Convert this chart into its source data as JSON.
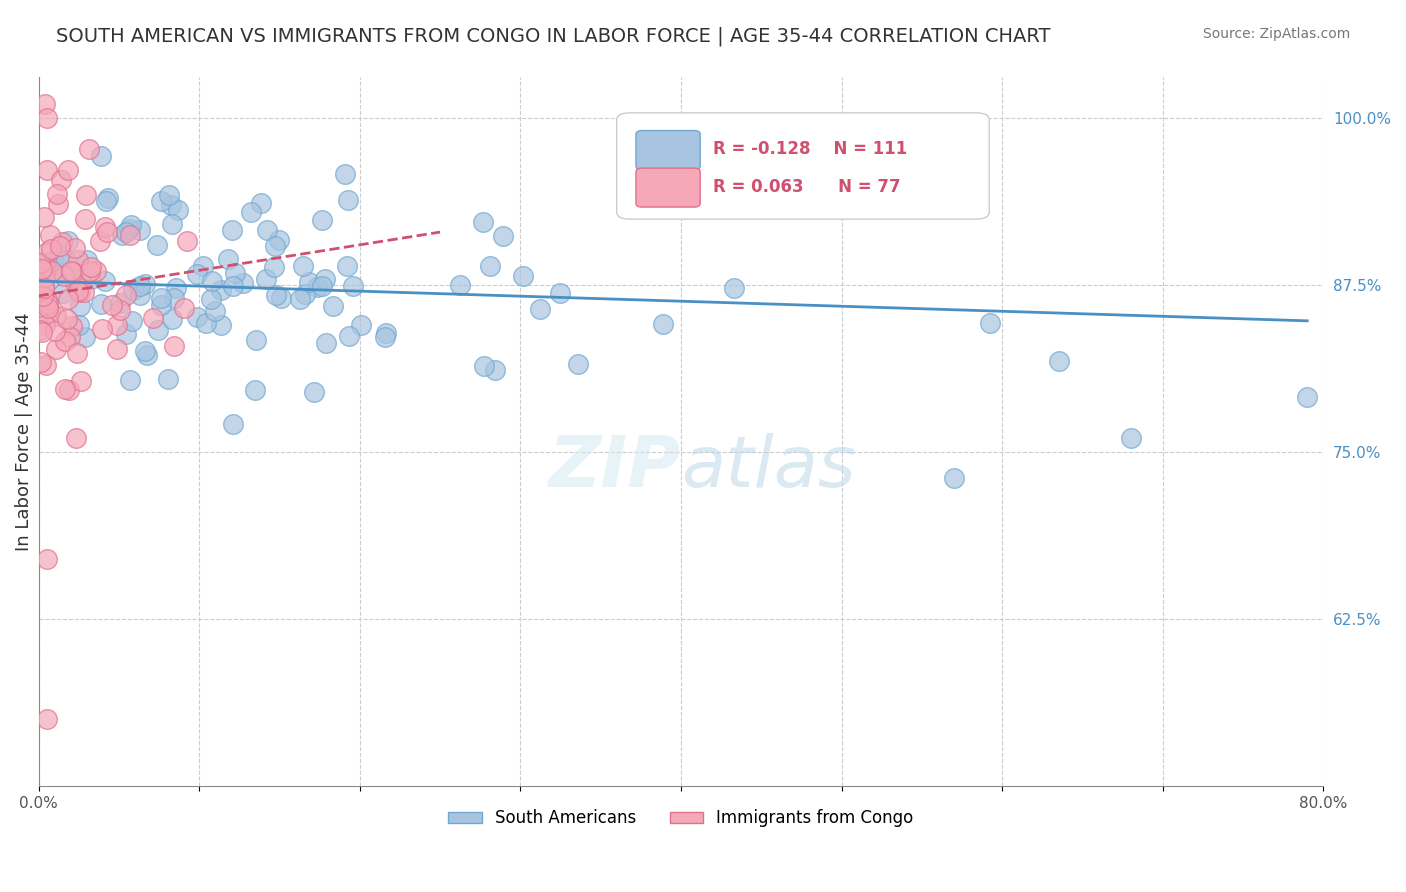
{
  "title": "SOUTH AMERICAN VS IMMIGRANTS FROM CONGO IN LABOR FORCE | AGE 35-44 CORRELATION CHART",
  "source": "Source: ZipAtlas.com",
  "xlabel": "",
  "ylabel": "In Labor Force | Age 35-44",
  "xlim": [
    0.0,
    0.8
  ],
  "ylim": [
    0.5,
    1.03
  ],
  "xticks": [
    0.0,
    0.1,
    0.2,
    0.3,
    0.4,
    0.5,
    0.6,
    0.7,
    0.8
  ],
  "xtick_labels": [
    "0.0%",
    "",
    "",
    "",
    "",
    "",
    "",
    "",
    "80.0%"
  ],
  "yticks": [
    0.625,
    0.75,
    0.875,
    1.0
  ],
  "ytick_labels": [
    "62.5%",
    "75.0%",
    "87.5%",
    "100.0%"
  ],
  "blue_color": "#a8c4e0",
  "blue_edge": "#6fa8d0",
  "pink_color": "#f4a8b8",
  "pink_edge": "#e07090",
  "trend_blue_color": "#4a90c4",
  "trend_pink_color": "#d05070",
  "legend_R_blue": "R = -0.128",
  "legend_N_blue": "N = 111",
  "legend_R_pink": "R = 0.063",
  "legend_N_pink": "N = 77",
  "R_blue": -0.128,
  "R_pink": 0.063,
  "N_blue": 111,
  "N_pink": 77
}
